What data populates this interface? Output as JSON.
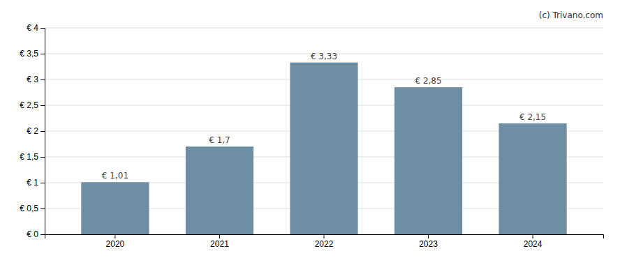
{
  "chart_data": {
    "type": "bar",
    "categories": [
      "2020",
      "2021",
      "2022",
      "2023",
      "2024"
    ],
    "values": [
      1.01,
      1.7,
      3.33,
      2.85,
      2.15
    ],
    "value_labels": [
      "€ 1,01",
      "€ 1,7",
      "€ 3,33",
      "€ 2,85",
      "€ 2,15"
    ],
    "data_labels": true,
    "color": "#6e8fa3",
    "ylim": [
      0,
      4.0
    ],
    "yticks": [
      {
        "value": 0,
        "label": "€ 0"
      },
      {
        "value": 0.5,
        "label": "€ 0,5"
      },
      {
        "value": 1.0,
        "label": "€ 1"
      },
      {
        "value": 1.5,
        "label": "€ 1,5"
      },
      {
        "value": 2.0,
        "label": "€ 2"
      },
      {
        "value": 2.5,
        "label": "€ 2,5"
      },
      {
        "value": 3.0,
        "label": "€ 3"
      },
      {
        "value": 3.5,
        "label": "€ 3,5"
      },
      {
        "value": 4.0,
        "label": "€ 4"
      }
    ],
    "grid": true,
    "annotations": [
      "(c) Trivano.com"
    ]
  }
}
